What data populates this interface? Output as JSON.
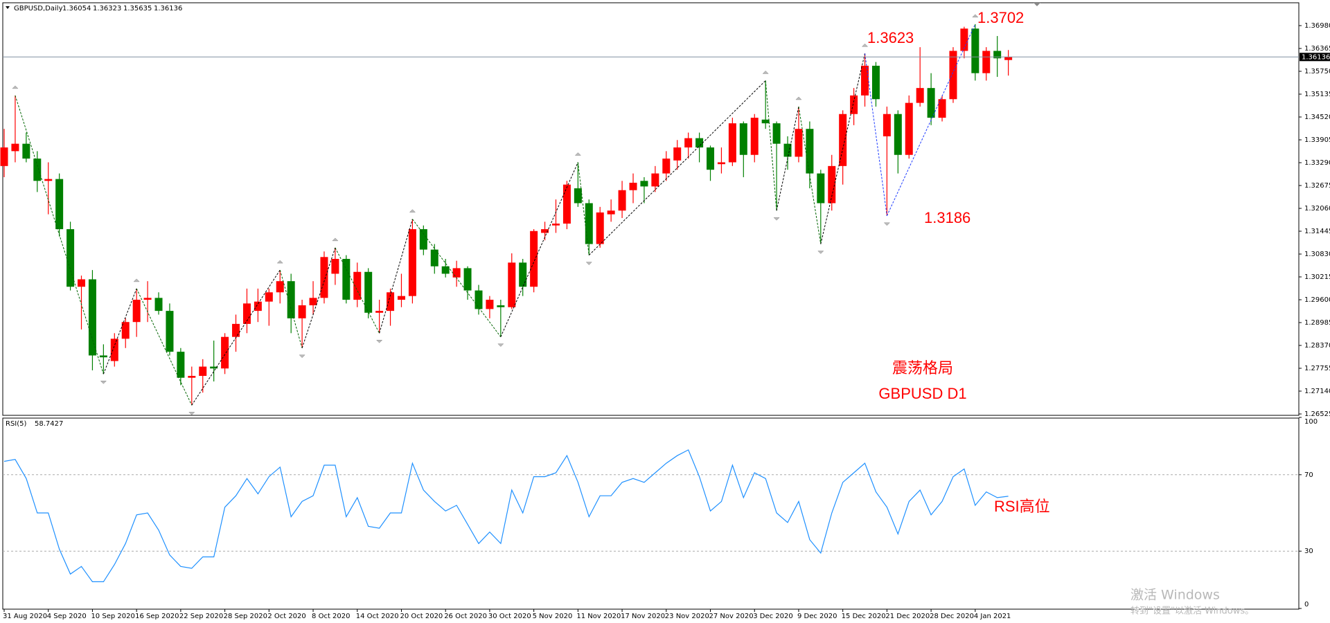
{
  "header_title": "GBPUSD,Daily",
  "annotations": [
    "震荡格局",
    "GBPUSD D1",
    "RSI高位"
  ],
  "watermark": [
    "激活 Windows",
    "转到\"设置\"以激活 Windows。"
  ],
  "chart_data": [
    {
      "type": "candlestick",
      "up_color": "#ff0000",
      "down_color": "#008000",
      "price_labels": [
        1.3623,
        1.3702,
        1.3186
      ],
      "ylim": [
        1.26488,
        1.37558
      ],
      "yticks": [
        {
          "value": 1.3698,
          "label": "1.36980"
        },
        {
          "value": 1.36365,
          "label": "1.36365"
        },
        {
          "value": 1.3575,
          "label": "1.35750"
        },
        {
          "value": 1.35135,
          "label": "1.35135"
        },
        {
          "value": 1.3452,
          "label": "1.34520"
        },
        {
          "value": 1.33905,
          "label": "1.33905"
        },
        {
          "value": 1.3329,
          "label": "1.33290"
        },
        {
          "value": 1.32675,
          "label": "1.32675"
        },
        {
          "value": 1.3206,
          "label": "1.32060"
        },
        {
          "value": 1.31445,
          "label": "1.31445"
        },
        {
          "value": 1.3083,
          "label": "1.30830"
        },
        {
          "value": 1.30215,
          "label": "1.30215"
        },
        {
          "value": 1.296,
          "label": "1.29600"
        },
        {
          "value": 1.28985,
          "label": "1.28985"
        },
        {
          "value": 1.2837,
          "label": "1.28370"
        },
        {
          "value": 1.27755,
          "label": "1.27755"
        },
        {
          "value": 1.2714,
          "label": "1.27140"
        },
        {
          "value": 1.26525,
          "label": "1.26525"
        }
      ],
      "categories": [
        "31 Aug 2020",
        null,
        null,
        null,
        "4 Sep 2020",
        null,
        null,
        null,
        "10 Sep 2020",
        null,
        null,
        null,
        "16 Sep 2020",
        null,
        null,
        null,
        "22 Sep 2020",
        null,
        null,
        null,
        "28 Sep 2020",
        null,
        null,
        null,
        "2 Oct 2020",
        null,
        null,
        null,
        "8 Oct 2020",
        null,
        null,
        null,
        "14 Oct 2020",
        null,
        null,
        null,
        "20 Oct 2020",
        null,
        null,
        null,
        "26 Oct 2020",
        null,
        null,
        null,
        "30 Oct 2020",
        null,
        null,
        null,
        "5 Nov 2020",
        null,
        null,
        null,
        "11 Nov 2020",
        null,
        null,
        null,
        "17 Nov 2020",
        null,
        null,
        null,
        "23 Nov 2020",
        null,
        null,
        null,
        "27 Nov 2020",
        null,
        null,
        null,
        "3 Dec 2020",
        null,
        null,
        null,
        "9 Dec 2020",
        null,
        null,
        null,
        "15 Dec 2020",
        null,
        null,
        null,
        "21 Dec 2020",
        null,
        null,
        null,
        "28 Dec 2020",
        null,
        null,
        null,
        "4 Jan 2021",
        null,
        null,
        null
      ],
      "candles": [
        [
          1.332,
          1.342,
          1.329,
          1.337
        ],
        [
          1.336,
          1.351,
          1.333,
          1.338
        ],
        [
          1.338,
          1.341,
          1.333,
          1.334
        ],
        [
          1.334,
          1.336,
          1.325,
          1.328
        ],
        [
          1.328,
          1.333,
          1.319,
          1.3285
        ],
        [
          1.3285,
          1.33,
          1.313,
          1.315
        ],
        [
          1.315,
          1.317,
          1.2985,
          1.2995
        ],
        [
          1.2995,
          1.3025,
          1.288,
          1.3015
        ],
        [
          1.3015,
          1.304,
          1.277,
          1.281
        ],
        [
          1.281,
          1.284,
          1.276,
          1.2805
        ],
        [
          1.2795,
          1.287,
          1.278,
          1.2855
        ],
        [
          1.2855,
          1.291,
          1.283,
          1.29
        ],
        [
          1.29,
          1.299,
          1.286,
          1.296
        ],
        [
          1.296,
          1.301,
          1.29,
          1.2965
        ],
        [
          1.2965,
          1.298,
          1.292,
          1.293
        ],
        [
          1.293,
          1.295,
          1.281,
          1.282
        ],
        [
          1.282,
          1.283,
          1.273,
          1.275
        ],
        [
          1.275,
          1.278,
          1.2676,
          1.2755
        ],
        [
          1.2755,
          1.28,
          1.271,
          1.278
        ],
        [
          1.278,
          1.285,
          1.274,
          1.2775
        ],
        [
          1.2775,
          1.287,
          1.276,
          1.286
        ],
        [
          1.286,
          1.292,
          1.282,
          1.2895
        ],
        [
          1.2895,
          1.299,
          1.287,
          1.295
        ],
        [
          1.293,
          1.299,
          1.29,
          1.2955
        ],
        [
          1.2955,
          1.299,
          1.289,
          1.298
        ],
        [
          1.298,
          1.304,
          1.295,
          1.301
        ],
        [
          1.301,
          1.303,
          1.287,
          1.291
        ],
        [
          1.291,
          1.296,
          1.283,
          1.2945
        ],
        [
          1.2945,
          1.301,
          1.292,
          1.2965
        ],
        [
          1.2965,
          1.309,
          1.295,
          1.3075
        ],
        [
          1.303,
          1.31,
          1.3,
          1.307
        ],
        [
          1.307,
          1.308,
          1.295,
          1.296
        ],
        [
          1.296,
          1.306,
          1.294,
          1.3035
        ],
        [
          1.3035,
          1.3045,
          1.291,
          1.2925
        ],
        [
          1.2925,
          1.296,
          1.287,
          1.293
        ],
        [
          1.293,
          1.299,
          1.289,
          1.298
        ],
        [
          1.296,
          1.303,
          1.294,
          1.297
        ],
        [
          1.297,
          1.3177,
          1.295,
          1.315
        ],
        [
          1.315,
          1.316,
          1.308,
          1.3095
        ],
        [
          1.3095,
          1.311,
          1.303,
          1.305
        ],
        [
          1.305,
          1.307,
          1.302,
          1.303
        ],
        [
          1.302,
          1.3065,
          1.2995,
          1.3045
        ],
        [
          1.3045,
          1.305,
          1.296,
          1.2985
        ],
        [
          1.2985,
          1.3,
          1.292,
          1.2935
        ],
        [
          1.2935,
          1.297,
          1.291,
          1.296
        ],
        [
          1.2945,
          1.296,
          1.286,
          1.294
        ],
        [
          1.294,
          1.3085,
          1.2935,
          1.306
        ],
        [
          1.306,
          1.307,
          1.297,
          1.2995
        ],
        [
          1.2995,
          1.315,
          1.298,
          1.3145
        ],
        [
          1.314,
          1.317,
          1.312,
          1.315
        ],
        [
          1.316,
          1.323,
          1.314,
          1.3165
        ],
        [
          1.3165,
          1.328,
          1.315,
          1.327
        ],
        [
          1.326,
          1.333,
          1.321,
          1.322
        ],
        [
          1.322,
          1.323,
          1.308,
          1.311
        ],
        [
          1.311,
          1.321,
          1.31,
          1.3195
        ],
        [
          1.319,
          1.323,
          1.317,
          1.32
        ],
        [
          1.32,
          1.328,
          1.318,
          1.3255
        ],
        [
          1.3255,
          1.33,
          1.322,
          1.3275
        ],
        [
          1.328,
          1.329,
          1.322,
          1.3265
        ],
        [
          1.3265,
          1.332,
          1.325,
          1.33
        ],
        [
          1.33,
          1.336,
          1.328,
          1.334
        ],
        [
          1.3335,
          1.339,
          1.331,
          1.337
        ],
        [
          1.337,
          1.341,
          1.334,
          1.3395
        ],
        [
          1.3395,
          1.341,
          1.333,
          1.337
        ],
        [
          1.337,
          1.3375,
          1.328,
          1.331
        ],
        [
          1.3325,
          1.337,
          1.33,
          1.333
        ],
        [
          1.333,
          1.345,
          1.332,
          1.3435
        ],
        [
          1.3435,
          1.344,
          1.329,
          1.335
        ],
        [
          1.335,
          1.346,
          1.333,
          1.345
        ],
        [
          1.3445,
          1.355,
          1.342,
          1.3435
        ],
        [
          1.3435,
          1.344,
          1.32,
          1.338
        ],
        [
          1.338,
          1.34,
          1.331,
          1.3345
        ],
        [
          1.3345,
          1.348,
          1.333,
          1.342
        ],
        [
          1.342,
          1.344,
          1.326,
          1.33
        ],
        [
          1.33,
          1.331,
          1.311,
          1.322
        ],
        [
          1.322,
          1.335,
          1.32,
          1.332
        ],
        [
          1.332,
          1.347,
          1.327,
          1.346
        ],
        [
          1.346,
          1.353,
          1.343,
          1.351
        ],
        [
          1.351,
          1.3623,
          1.348,
          1.359
        ],
        [
          1.359,
          1.36,
          1.348,
          1.35
        ],
        [
          1.34,
          1.348,
          1.3186,
          1.346
        ],
        [
          1.346,
          1.347,
          1.33,
          1.335
        ],
        [
          1.335,
          1.351,
          1.334,
          1.349
        ],
        [
          1.349,
          1.364,
          1.348,
          1.353
        ],
        [
          1.353,
          1.357,
          1.343,
          1.345
        ],
        [
          1.345,
          1.351,
          1.344,
          1.35
        ],
        [
          1.35,
          1.364,
          1.349,
          1.363
        ],
        [
          1.363,
          1.3695,
          1.361,
          1.369
        ],
        [
          1.369,
          1.3702,
          1.355,
          1.357
        ],
        [
          1.357,
          1.364,
          1.355,
          1.363
        ],
        [
          1.363,
          1.367,
          1.356,
          1.361
        ],
        [
          1.36054,
          1.36323,
          1.35635,
          1.36136
        ]
      ]
    },
    {
      "type": "line",
      "name": "RSI(5)",
      "color": "#1e90ff",
      "ylim": [
        0,
        100
      ],
      "yticks": [
        0,
        30,
        70,
        100
      ],
      "levels": [
        30,
        70
      ],
      "values": [
        77,
        78,
        68,
        50,
        50,
        31,
        18,
        22,
        14,
        14,
        23,
        34,
        49,
        50,
        41,
        28,
        22,
        21,
        27,
        27,
        53,
        59,
        68,
        60,
        69,
        74,
        48,
        56,
        59,
        75,
        75,
        48,
        58,
        43,
        42,
        50,
        50,
        76,
        62,
        56,
        51,
        54,
        44,
        34,
        40,
        34,
        62,
        50,
        69,
        69,
        71,
        80,
        66,
        48,
        59,
        59,
        66,
        68,
        66,
        71,
        76,
        80,
        83,
        69,
        51,
        56,
        75,
        58,
        71,
        68,
        50,
        45,
        56,
        36,
        29,
        50,
        66,
        71,
        76,
        61,
        53,
        39,
        56,
        62,
        49,
        56,
        69,
        73,
        54,
        61,
        58,
        58.7427
      ]
    }
  ]
}
